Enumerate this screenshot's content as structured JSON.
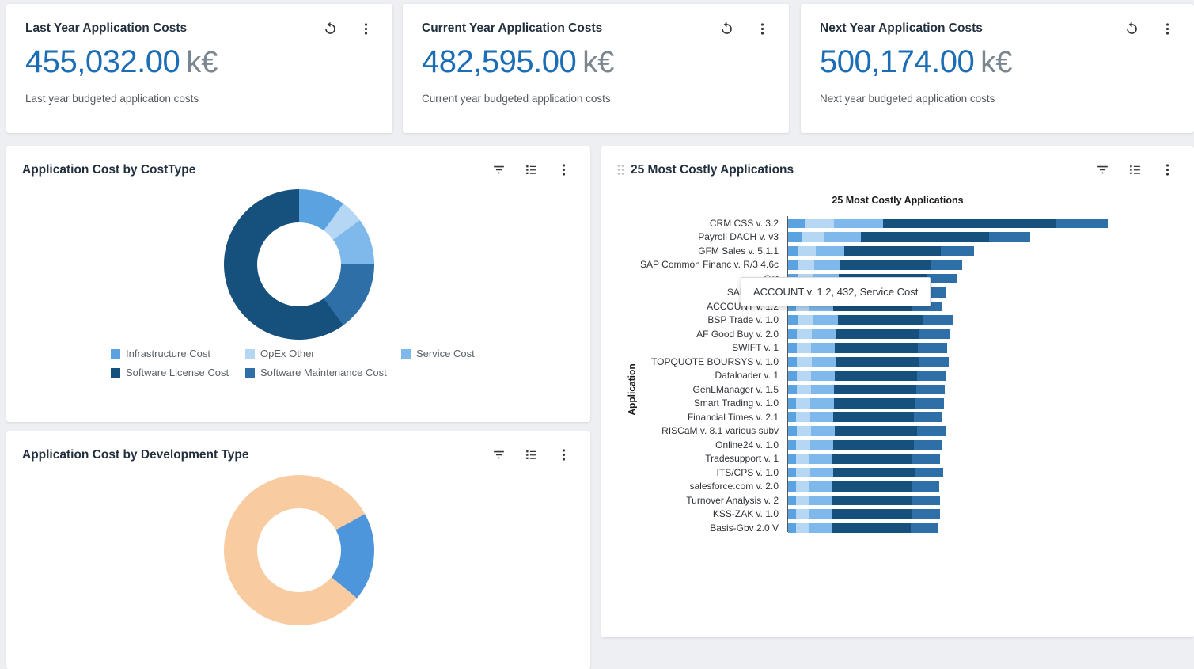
{
  "kpi_cards": [
    {
      "title": "Last Year Application Costs",
      "value": "455,032.00",
      "unit": "k€",
      "subtitle": "Last year budgeted application costs"
    },
    {
      "title": "Current Year Application Costs",
      "value": "482,595.00",
      "unit": "k€",
      "subtitle": "Current year budgeted application costs"
    },
    {
      "title": "Next Year Application Costs",
      "value": "500,174.00",
      "unit": "k€",
      "subtitle": "Next year budgeted application costs"
    }
  ],
  "cards": {
    "cost_type_title": "Application Cost by CostType",
    "dev_type_title": "Application Cost by Development Type",
    "bar_card_title": "25 Most Costly Applications"
  },
  "tooltip": {
    "text": "ACCOUNT v. 1.2, 432, Service Cost"
  },
  "icons": {
    "refresh": "circular-arrow",
    "kebab": "three-vertical-dots",
    "filter": "funnel-lines",
    "list": "bulleted-list",
    "drag": "six-dot-handle"
  },
  "colors": {
    "kpi_value": "#1b6db5",
    "dark_blue": "#16517e",
    "mid_blue": "#2f6fa8",
    "light_blue": "#5ba3e0",
    "pale_blue": "#b5d7f4",
    "sky_blue": "#7fb9ec",
    "peach": "#f9cba1"
  },
  "chart_data": [
    {
      "type": "pie",
      "donut": true,
      "title": "Application Cost by CostType",
      "segments": [
        {
          "label": "Infrastructure Cost",
          "pct": 10,
          "color": "#5ba3e0"
        },
        {
          "label": "OpEx Other",
          "pct": 5,
          "color": "#b5d7f4"
        },
        {
          "label": "Service Cost",
          "pct": 10,
          "color": "#7fb9ec"
        },
        {
          "label": "Software Maintenance Cost",
          "pct": 15,
          "color": "#2f6fa8"
        },
        {
          "label": "Software License Cost",
          "pct": 60,
          "color": "#16517e"
        }
      ],
      "legend_order": [
        0,
        1,
        2,
        4,
        3
      ],
      "legend_position": "bottom"
    },
    {
      "type": "pie",
      "donut": true,
      "title": "Application Cost by Development Type",
      "note": "partially visible at bottom of screen",
      "segments": [
        {
          "label": "",
          "pct": 17,
          "color": "#f9cba1"
        },
        {
          "label": "",
          "pct": 19,
          "color": "#4e96dc"
        },
        {
          "label": "",
          "pct": 64,
          "color": "#f9cba1"
        }
      ]
    },
    {
      "type": "bar",
      "orientation": "horizontal",
      "stacked": true,
      "title": "25 Most Costly Applications",
      "ylabel": "Application",
      "xmax": 7000,
      "series_names": [
        "Infrastructure Cost",
        "OpEx Other",
        "Service Cost",
        "Software License Cost",
        "Software Maintenance Cost"
      ],
      "series_colors": [
        "#5ba3e0",
        "#b5d7f4",
        "#7fb9ec",
        "#16517e",
        "#2f6fa8"
      ],
      "categories": [
        "CRM CSS v. 3.2",
        "Payroll DACH v. v3",
        "GFM Sales v. 5.1.1",
        "SAP Common Financ v. R/3 4.6c",
        "Cat",
        "SAP SEM-B",
        "ACCOUNT v. 1.2",
        "BSP Trade v. 1.0",
        "AF Good Buy v. 2.0",
        "SWIFT v. 1",
        "TOPQUOTE BOURSYS v. 1.0",
        "Dataloader v. 1",
        "GenLManager v. 1.5",
        "Smart Trading v. 1.0",
        "Financial Times v. 2.1",
        "RISCaM v. 8.1 various subv",
        "Online24 v. 1.0",
        "Tradesupport v. 1",
        "ITS/CPS v. 1.0",
        "salesforce.com v. 2.0",
        "Turnover Analysis v. 2",
        "KSS-ZAK v. 1.0",
        "Basis-Gbv 2.0 V"
      ],
      "rows": [
        [
          310,
          520,
          890,
          3150,
          930
        ],
        [
          240,
          420,
          660,
          2330,
          750
        ],
        [
          190,
          320,
          510,
          1760,
          600
        ],
        [
          180,
          300,
          470,
          1640,
          570
        ],
        [
          170,
          290,
          460,
          1590,
          560
        ],
        [
          160,
          270,
          430,
          1480,
          530
        ],
        [
          150,
          240,
          432,
          1440,
          520
        ],
        [
          170,
          280,
          450,
          1550,
          550
        ],
        [
          160,
          270,
          440,
          1520,
          540
        ],
        [
          160,
          260,
          430,
          1510,
          530
        ],
        [
          160,
          270,
          440,
          1510,
          540
        ],
        [
          155,
          260,
          430,
          1500,
          530
        ],
        [
          155,
          255,
          425,
          1490,
          525
        ],
        [
          150,
          255,
          425,
          1485,
          520
        ],
        [
          150,
          250,
          420,
          1470,
          515
        ],
        [
          155,
          260,
          430,
          1500,
          530
        ],
        [
          150,
          250,
          415,
          1465,
          510
        ],
        [
          145,
          245,
          410,
          1450,
          505
        ],
        [
          150,
          255,
          420,
          1480,
          515
        ],
        [
          145,
          245,
          405,
          1445,
          500
        ],
        [
          145,
          250,
          410,
          1455,
          505
        ],
        [
          145,
          250,
          410,
          1450,
          505
        ],
        [
          145,
          245,
          405,
          1440,
          500
        ]
      ]
    }
  ]
}
